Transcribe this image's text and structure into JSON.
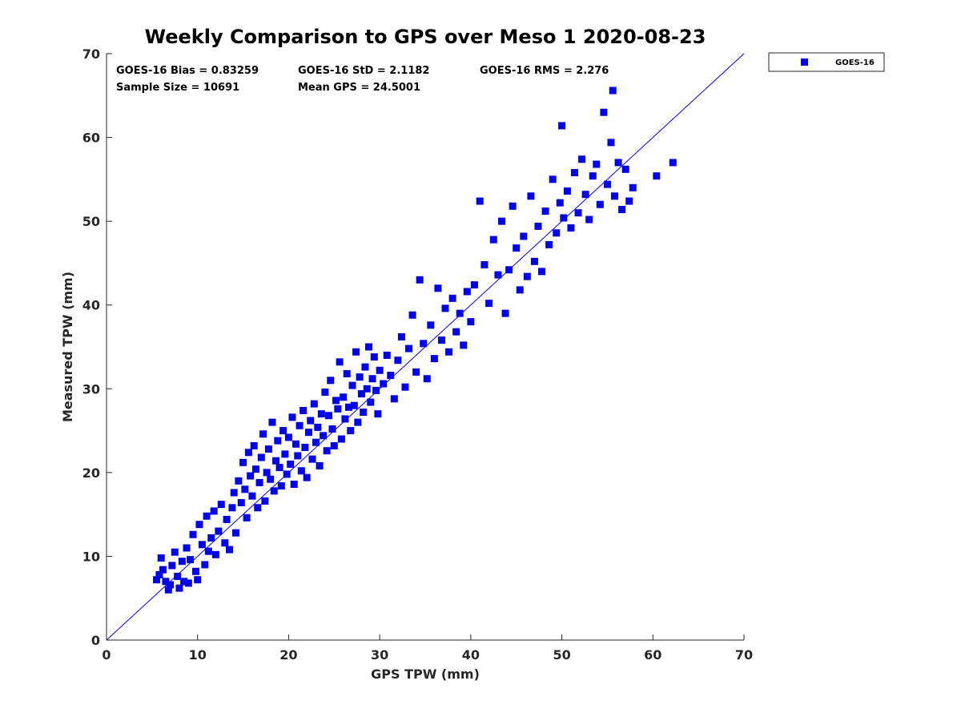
{
  "chart_data": {
    "type": "scatter",
    "title": "Weekly Comparison to GPS over Meso 1 2020-08-23",
    "xlabel": "GPS TPW (mm)",
    "ylabel": "Measured TPW (mm)",
    "xlim": [
      0,
      70
    ],
    "ylim": [
      0,
      70
    ],
    "xticks": [
      0,
      10,
      20,
      30,
      40,
      50,
      60,
      70
    ],
    "yticks": [
      0,
      10,
      20,
      30,
      40,
      50,
      60,
      70
    ],
    "grid": false,
    "legend_placement": "outside-top-right",
    "reference_line": {
      "kind": "one-to-one",
      "from": [
        0,
        0
      ],
      "to": [
        70,
        70
      ],
      "color": "#0000ff"
    },
    "annotations": [
      {
        "id": "bias",
        "text": "GOES-16 Bias = 0.83259"
      },
      {
        "id": "std",
        "text": "GOES-16 StD = 2.1182"
      },
      {
        "id": "rms",
        "text": "GOES-16 RMS = 2.276"
      },
      {
        "id": "sample",
        "text": "Sample Size = 10691"
      },
      {
        "id": "mean",
        "text": "Mean GPS = 24.5001"
      }
    ],
    "series": [
      {
        "name": "GOES-16",
        "color": "#0000ee",
        "marker": "square",
        "points": [
          [
            5.5,
            7.2
          ],
          [
            5.8,
            7.8
          ],
          [
            6.0,
            9.8
          ],
          [
            6.2,
            8.4
          ],
          [
            6.5,
            7.0
          ],
          [
            6.8,
            6.0
          ],
          [
            7.0,
            6.6
          ],
          [
            7.2,
            8.9
          ],
          [
            7.5,
            10.5
          ],
          [
            7.8,
            7.6
          ],
          [
            8.0,
            6.2
          ],
          [
            8.3,
            9.4
          ],
          [
            8.5,
            7.0
          ],
          [
            8.8,
            11.0
          ],
          [
            9.0,
            6.8
          ],
          [
            9.2,
            9.6
          ],
          [
            9.5,
            12.6
          ],
          [
            9.8,
            8.2
          ],
          [
            10.0,
            7.2
          ],
          [
            10.2,
            13.8
          ],
          [
            10.5,
            11.4
          ],
          [
            10.8,
            9.0
          ],
          [
            11.0,
            14.8
          ],
          [
            11.2,
            10.6
          ],
          [
            11.5,
            12.2
          ],
          [
            11.8,
            15.4
          ],
          [
            12.0,
            10.2
          ],
          [
            12.3,
            13.0
          ],
          [
            12.6,
            16.2
          ],
          [
            13.0,
            11.6
          ],
          [
            13.2,
            14.4
          ],
          [
            13.5,
            10.8
          ],
          [
            13.8,
            15.8
          ],
          [
            14.0,
            17.6
          ],
          [
            14.2,
            12.8
          ],
          [
            14.5,
            19.0
          ],
          [
            14.8,
            16.4
          ],
          [
            15.0,
            21.2
          ],
          [
            15.2,
            18.0
          ],
          [
            15.4,
            14.6
          ],
          [
            15.6,
            22.4
          ],
          [
            15.8,
            19.6
          ],
          [
            16.0,
            17.2
          ],
          [
            16.2,
            23.2
          ],
          [
            16.4,
            20.4
          ],
          [
            16.6,
            15.8
          ],
          [
            16.8,
            18.8
          ],
          [
            17.0,
            21.8
          ],
          [
            17.2,
            24.6
          ],
          [
            17.4,
            16.6
          ],
          [
            17.6,
            20.0
          ],
          [
            17.8,
            22.8
          ],
          [
            18.0,
            19.2
          ],
          [
            18.2,
            26.0
          ],
          [
            18.4,
            17.8
          ],
          [
            18.6,
            21.4
          ],
          [
            18.8,
            23.8
          ],
          [
            19.0,
            20.6
          ],
          [
            19.2,
            18.4
          ],
          [
            19.4,
            25.0
          ],
          [
            19.6,
            22.2
          ],
          [
            19.8,
            19.8
          ],
          [
            20.0,
            24.2
          ],
          [
            20.2,
            21.0
          ],
          [
            20.4,
            26.6
          ],
          [
            20.6,
            18.6
          ],
          [
            20.8,
            23.4
          ],
          [
            21.0,
            22.0
          ],
          [
            21.2,
            25.6
          ],
          [
            21.4,
            20.2
          ],
          [
            21.6,
            27.4
          ],
          [
            21.8,
            23.0
          ],
          [
            22.0,
            19.4
          ],
          [
            22.2,
            24.8
          ],
          [
            22.4,
            26.2
          ],
          [
            22.6,
            21.6
          ],
          [
            22.8,
            28.2
          ],
          [
            23.0,
            23.6
          ],
          [
            23.2,
            25.4
          ],
          [
            23.4,
            20.8
          ],
          [
            23.6,
            27.0
          ],
          [
            23.8,
            24.4
          ],
          [
            24.0,
            29.6
          ],
          [
            24.2,
            22.6
          ],
          [
            24.4,
            26.8
          ],
          [
            24.6,
            31.0
          ],
          [
            24.8,
            25.2
          ],
          [
            25.0,
            23.2
          ],
          [
            25.2,
            28.6
          ],
          [
            25.4,
            27.6
          ],
          [
            25.6,
            33.2
          ],
          [
            25.8,
            24.0
          ],
          [
            26.0,
            29.0
          ],
          [
            26.2,
            26.4
          ],
          [
            26.4,
            31.8
          ],
          [
            26.6,
            27.8
          ],
          [
            26.8,
            25.0
          ],
          [
            27.0,
            30.4
          ],
          [
            27.2,
            28.0
          ],
          [
            27.4,
            34.4
          ],
          [
            27.6,
            26.0
          ],
          [
            27.8,
            31.4
          ],
          [
            28.0,
            29.4
          ],
          [
            28.2,
            27.2
          ],
          [
            28.4,
            32.6
          ],
          [
            28.6,
            30.0
          ],
          [
            28.8,
            35.0
          ],
          [
            29.0,
            28.4
          ],
          [
            29.2,
            31.2
          ],
          [
            29.4,
            33.8
          ],
          [
            29.6,
            29.8
          ],
          [
            29.8,
            27.0
          ],
          [
            30.0,
            32.2
          ],
          [
            30.4,
            30.6
          ],
          [
            30.8,
            34.0
          ],
          [
            31.2,
            31.6
          ],
          [
            31.6,
            28.8
          ],
          [
            32.0,
            33.4
          ],
          [
            32.4,
            36.2
          ],
          [
            32.8,
            30.2
          ],
          [
            33.2,
            34.8
          ],
          [
            33.6,
            38.8
          ],
          [
            34.0,
            32.0
          ],
          [
            34.4,
            43.0
          ],
          [
            34.8,
            35.4
          ],
          [
            35.2,
            31.2
          ],
          [
            35.6,
            37.6
          ],
          [
            36.0,
            33.6
          ],
          [
            36.4,
            42.0
          ],
          [
            36.8,
            35.8
          ],
          [
            37.2,
            39.6
          ],
          [
            37.6,
            34.4
          ],
          [
            38.0,
            40.8
          ],
          [
            38.4,
            36.8
          ],
          [
            38.8,
            39.0
          ],
          [
            39.2,
            35.2
          ],
          [
            39.6,
            41.6
          ],
          [
            40.0,
            38.0
          ],
          [
            40.4,
            42.4
          ],
          [
            41.0,
            52.4
          ],
          [
            41.5,
            44.8
          ],
          [
            42.0,
            40.2
          ],
          [
            42.5,
            47.8
          ],
          [
            43.0,
            43.6
          ],
          [
            43.4,
            50.0
          ],
          [
            43.8,
            39.0
          ],
          [
            44.2,
            44.2
          ],
          [
            44.6,
            51.8
          ],
          [
            45.0,
            46.8
          ],
          [
            45.4,
            41.8
          ],
          [
            45.8,
            48.2
          ],
          [
            46.2,
            43.4
          ],
          [
            46.6,
            53.0
          ],
          [
            47.0,
            45.2
          ],
          [
            47.4,
            49.4
          ],
          [
            47.8,
            44.0
          ],
          [
            48.2,
            51.2
          ],
          [
            48.6,
            47.2
          ],
          [
            49.0,
            55.0
          ],
          [
            49.4,
            48.6
          ],
          [
            49.8,
            52.2
          ],
          [
            50.0,
            61.4
          ],
          [
            50.2,
            50.4
          ],
          [
            50.6,
            53.6
          ],
          [
            51.0,
            49.2
          ],
          [
            51.4,
            55.8
          ],
          [
            51.8,
            51.0
          ],
          [
            52.2,
            57.4
          ],
          [
            52.6,
            53.2
          ],
          [
            53.0,
            50.2
          ],
          [
            53.4,
            55.4
          ],
          [
            53.8,
            56.8
          ],
          [
            54.2,
            52.0
          ],
          [
            54.6,
            63.0
          ],
          [
            55.0,
            54.4
          ],
          [
            55.4,
            59.4
          ],
          [
            55.6,
            65.6
          ],
          [
            55.8,
            53.0
          ],
          [
            56.2,
            57.0
          ],
          [
            56.6,
            51.4
          ],
          [
            57.0,
            56.2
          ],
          [
            57.4,
            52.4
          ],
          [
            57.8,
            54.0
          ],
          [
            60.4,
            55.4
          ],
          [
            62.2,
            57.0
          ]
        ]
      }
    ]
  }
}
